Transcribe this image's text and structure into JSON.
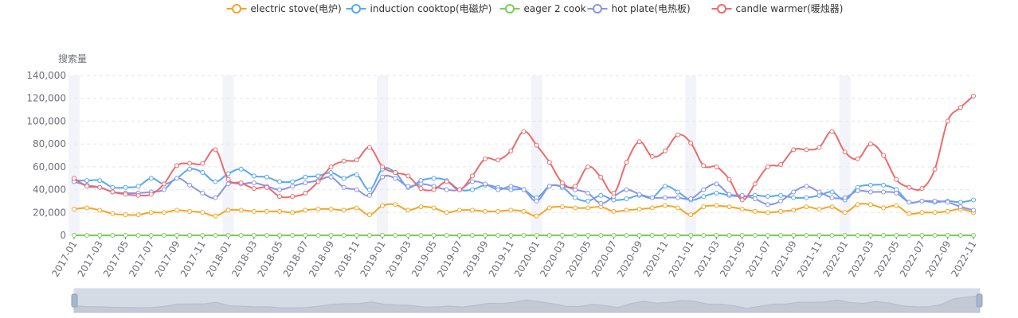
{
  "chart_data": {
    "type": "line",
    "ylabel": "搜索量",
    "ylim": [
      0,
      140000
    ],
    "yticks": [
      0,
      20000,
      40000,
      60000,
      80000,
      100000,
      120000,
      140000
    ],
    "ytick_labels": [
      "0",
      "20,000",
      "40,000",
      "60,000",
      "80,000",
      "100,000",
      "120,000",
      "140,000"
    ],
    "xtick_labels": [
      "2017-01",
      "2017-03",
      "2017-05",
      "2017-07",
      "2017-09",
      "2017-11",
      "2018-01",
      "2018-03",
      "2018-05",
      "2018-07",
      "2018-09",
      "2018-11",
      "2019-01",
      "2019-03",
      "2019-05",
      "2019-07",
      "2019-09",
      "2019-11",
      "2020-01",
      "2020-03",
      "2020-05",
      "2020-07",
      "2020-09",
      "2020-11",
      "2021-01",
      "2021-03",
      "2021-05",
      "2021-07",
      "2021-09",
      "2021-11",
      "2022-01",
      "2022-03",
      "2022-05",
      "2022-07",
      "2022-09",
      "2022-11"
    ],
    "x_start": "2017-01",
    "x_end": "2022-11",
    "grid": true,
    "legend_position": "top-center",
    "data_zoom": true,
    "series": [
      {
        "name": "electric stove(电炉)",
        "color": "#f5a623",
        "values": [
          23000,
          24000,
          22000,
          19000,
          18000,
          18000,
          20000,
          20000,
          22000,
          21000,
          20000,
          17000,
          22000,
          22000,
          21000,
          21000,
          21000,
          20000,
          22000,
          23000,
          23000,
          22000,
          24000,
          18000,
          26000,
          27000,
          22000,
          25000,
          24000,
          20000,
          22000,
          22000,
          21000,
          21000,
          22000,
          21000,
          17000,
          24000,
          25000,
          24000,
          24000,
          25000,
          21000,
          22000,
          23000,
          24000,
          26000,
          24000,
          18000,
          25000,
          26000,
          25000,
          23000,
          21000,
          20000,
          21000,
          22000,
          25000,
          23000,
          25000,
          20000,
          27000,
          27000,
          24000,
          26000,
          19000,
          20000,
          20000,
          21000,
          23000,
          20000
        ]
      },
      {
        "name": "induction cooktop(电磁炉)",
        "color": "#5aa8f0",
        "values": [
          48000,
          48000,
          48000,
          42000,
          42000,
          43000,
          50000,
          45000,
          50000,
          58000,
          55000,
          47000,
          54000,
          58000,
          52000,
          51000,
          47000,
          47000,
          51000,
          52000,
          55000,
          50000,
          53000,
          40000,
          58000,
          55000,
          42000,
          48000,
          50000,
          48000,
          40000,
          40000,
          44000,
          42000,
          40000,
          40000,
          33000,
          43000,
          42000,
          33000,
          30000,
          35000,
          31000,
          32000,
          35000,
          33000,
          43000,
          38000,
          31000,
          34000,
          37000,
          35000,
          34000,
          35000,
          34000,
          35000,
          33000,
          33000,
          35000,
          38000,
          31000,
          42000,
          44000,
          44000,
          40000,
          29000,
          30000,
          29000,
          30000,
          29000,
          31000
        ]
      },
      {
        "name": "eager 2 cook",
        "color": "#7ccd5a",
        "values": [
          0,
          0,
          0,
          0,
          0,
          0,
          0,
          0,
          0,
          0,
          0,
          0,
          0,
          0,
          0,
          0,
          0,
          0,
          0,
          0,
          0,
          0,
          0,
          0,
          0,
          0,
          0,
          0,
          0,
          0,
          0,
          0,
          0,
          0,
          0,
          0,
          0,
          0,
          0,
          0,
          0,
          0,
          0,
          0,
          0,
          0,
          0,
          0,
          0,
          0,
          0,
          0,
          0,
          0,
          0,
          0,
          0,
          0,
          0,
          0,
          0,
          0,
          0,
          0,
          0,
          0,
          0,
          0,
          0,
          0,
          0
        ]
      },
      {
        "name": "hot plate(电热板)",
        "color": "#8a94e6",
        "values": [
          47000,
          44000,
          42000,
          38000,
          37000,
          37000,
          38000,
          40000,
          50000,
          44000,
          37000,
          33000,
          45000,
          45000,
          46000,
          43000,
          40000,
          43000,
          46000,
          48000,
          51000,
          42000,
          40000,
          35000,
          51000,
          50000,
          43000,
          45000,
          43000,
          40000,
          40000,
          47000,
          45000,
          40000,
          43000,
          40000,
          30000,
          43000,
          43000,
          40000,
          37000,
          28000,
          34000,
          40000,
          36000,
          33000,
          33000,
          33000,
          32000,
          40000,
          45000,
          36000,
          35000,
          32000,
          27000,
          30000,
          38000,
          43000,
          38000,
          33000,
          33000,
          39000,
          38000,
          38000,
          37000,
          29000,
          30000,
          30000,
          29000,
          25000,
          22000
        ]
      },
      {
        "name": "candle warmer(暖烛器)",
        "color": "#ec6b6b",
        "values": [
          50000,
          43000,
          42000,
          38000,
          36000,
          35000,
          36000,
          45000,
          61000,
          63000,
          63000,
          75000,
          49000,
          46000,
          41000,
          42000,
          34000,
          34000,
          37000,
          47000,
          60000,
          65000,
          66000,
          77000,
          60000,
          55000,
          52000,
          41000,
          40000,
          47000,
          40000,
          52000,
          67000,
          66000,
          74000,
          91000,
          79000,
          64000,
          46000,
          43000,
          60000,
          51000,
          37000,
          64000,
          82000,
          69000,
          74000,
          88000,
          81000,
          61000,
          60000,
          49000,
          31000,
          45000,
          60000,
          62000,
          75000,
          75000,
          77000,
          91000,
          73000,
          67000,
          80000,
          70000,
          49000,
          42000,
          41000,
          58000,
          100000,
          112000,
          122000
        ]
      }
    ]
  }
}
